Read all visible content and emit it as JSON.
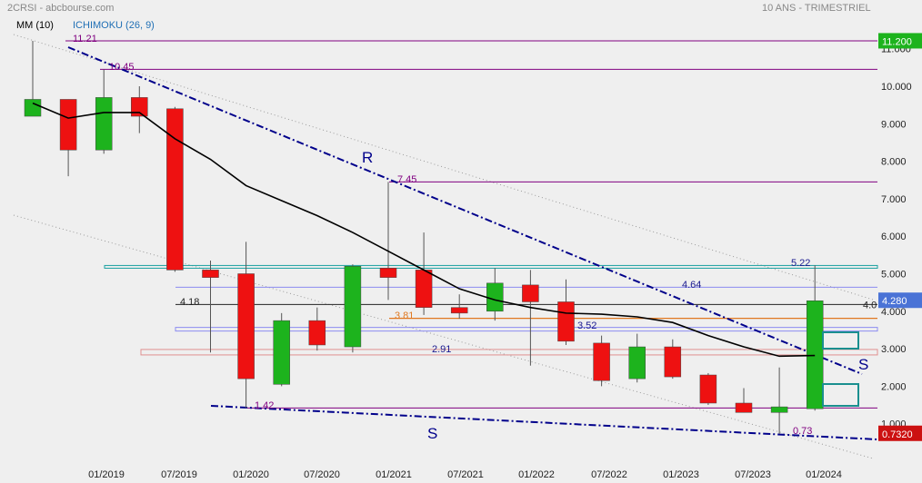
{
  "header": {
    "source": "2CRSI - abcbourse.com",
    "period": "10 ANS - TRIMESTRIEL"
  },
  "legend": {
    "ma_label": "MM (10)",
    "ichimoku_label": "ICHIMOKU (26, 9)"
  },
  "colors": {
    "background": "#efefef",
    "up": "#1db31d",
    "down": "#ee1111",
    "ma": "#000000",
    "trendline": "#00008b",
    "level": "#800080",
    "ichimoku": "#1f6fb5"
  },
  "chart_data": {
    "type": "candlestick",
    "x_ticks": [
      "01/2019",
      "07/2019",
      "01/2020",
      "07/2020",
      "01/2021",
      "07/2021",
      "01/2022",
      "07/2022",
      "01/2023",
      "07/2023",
      "01/2024"
    ],
    "y_ticks": [
      "1.000",
      "2.000",
      "3.000",
      "4.000",
      "5.000",
      "6.000",
      "7.000",
      "8.000",
      "9.000",
      "10.000",
      "11.000"
    ],
    "ylim": [
      0.2,
      11.8
    ],
    "grid": false,
    "candles": [
      {
        "o": 9.2,
        "h": 11.21,
        "l": 9.2,
        "c": 9.65
      },
      {
        "o": 9.65,
        "h": 9.65,
        "l": 7.6,
        "c": 8.3
      },
      {
        "o": 8.3,
        "h": 10.45,
        "l": 8.2,
        "c": 9.7
      },
      {
        "o": 9.7,
        "h": 10.0,
        "l": 8.75,
        "c": 9.2
      },
      {
        "o": 9.4,
        "h": 9.45,
        "l": 5.05,
        "c": 5.1
      },
      {
        "o": 5.1,
        "h": 5.35,
        "l": 2.9,
        "c": 4.9
      },
      {
        "o": 5.0,
        "h": 5.85,
        "l": 1.42,
        "c": 2.2
      },
      {
        "o": 2.05,
        "h": 3.95,
        "l": 2.0,
        "c": 3.75
      },
      {
        "o": 3.75,
        "h": 4.1,
        "l": 2.95,
        "c": 3.1
      },
      {
        "o": 3.05,
        "h": 5.25,
        "l": 2.9,
        "c": 5.2
      },
      {
        "o": 5.15,
        "h": 7.45,
        "l": 4.3,
        "c": 4.9
      },
      {
        "o": 5.1,
        "h": 6.1,
        "l": 3.9,
        "c": 4.1
      },
      {
        "o": 4.1,
        "h": 4.45,
        "l": 3.8,
        "c": 3.95
      },
      {
        "o": 4.0,
        "h": 5.15,
        "l": 3.75,
        "c": 4.75
      },
      {
        "o": 4.7,
        "h": 5.1,
        "l": 2.55,
        "c": 4.25
      },
      {
        "o": 4.25,
        "h": 4.85,
        "l": 3.1,
        "c": 3.2
      },
      {
        "o": 3.15,
        "h": 3.35,
        "l": 2.0,
        "c": 2.15
      },
      {
        "o": 2.2,
        "h": 3.4,
        "l": 2.1,
        "c": 3.05
      },
      {
        "o": 3.05,
        "h": 3.25,
        "l": 2.2,
        "c": 2.25
      },
      {
        "o": 2.3,
        "h": 2.35,
        "l": 1.5,
        "c": 1.55
      },
      {
        "o": 1.55,
        "h": 1.95,
        "l": 1.3,
        "c": 1.3
      },
      {
        "o": 1.3,
        "h": 2.5,
        "l": 0.73,
        "c": 1.45
      },
      {
        "o": 1.4,
        "h": 5.22,
        "l": 1.35,
        "c": 4.28
      }
    ],
    "moving_average": {
      "name": "MM (10)",
      "values": [
        9.55,
        9.15,
        9.3,
        9.3,
        8.6,
        8.05,
        7.35,
        6.95,
        6.55,
        6.1,
        5.6,
        5.1,
        4.6,
        4.3,
        4.1,
        3.95,
        3.92,
        3.85,
        3.7,
        3.35,
        3.05,
        2.8,
        2.82
      ]
    },
    "price_labels": [
      {
        "label": "11.21",
        "value": 11.21
      },
      {
        "label": "10.45",
        "value": 10.45
      },
      {
        "label": "7.45",
        "value": 7.45
      },
      {
        "label": "5.22",
        "value": 5.22
      },
      {
        "label": "4.64",
        "value": 4.64
      },
      {
        "label": "4.18",
        "value": 4.18
      },
      {
        "label": "3.81",
        "value": 3.81
      },
      {
        "label": "3.52",
        "value": 3.52
      },
      {
        "label": "2.91",
        "value": 2.91
      },
      {
        "label": "1.42",
        "value": 1.42
      },
      {
        "label": "0.73",
        "value": 0.73
      }
    ],
    "trendline_labels": [
      "R",
      "S",
      "S"
    ],
    "axis_badges": [
      {
        "label": "11.200",
        "value": 11.2,
        "color": "#1db31d"
      },
      {
        "label": "4.280",
        "value": 4.28,
        "color": "#4a73d6"
      },
      {
        "label": "0.7320",
        "value": 0.732,
        "color": "#cc1111"
      }
    ],
    "axis_clipped_label": "4.0"
  }
}
